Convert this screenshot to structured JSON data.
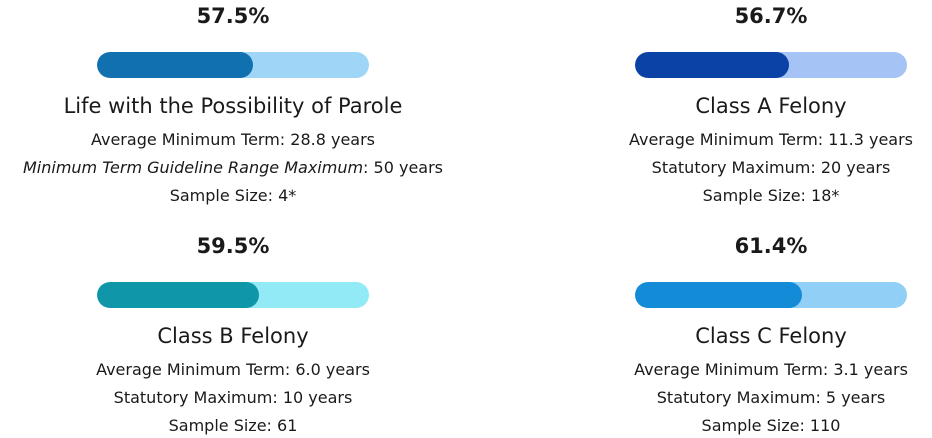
{
  "chart_data": [
    {
      "type": "progress",
      "title": "Life with the Possibility of Parole",
      "values": [
        57.5
      ],
      "value_labels": [
        "57.5%"
      ],
      "xlim": [
        0,
        100
      ],
      "color": "#1170b0",
      "track_color": "#9fd6f7",
      "lines": [
        [
          {
            "text": "Average Minimum Term: 28.8 years"
          }
        ],
        [
          {
            "text": "Minimum Term Guideline Range Maximum",
            "italic": true
          },
          {
            "text": ": 50 years"
          }
        ],
        [
          {
            "text": "Sample Size: 4*"
          }
        ]
      ]
    },
    {
      "type": "progress",
      "title": "Class A Felony",
      "values": [
        56.7
      ],
      "value_labels": [
        "56.7%"
      ],
      "xlim": [
        0,
        100
      ],
      "color": "#0a42a6",
      "track_color": "#a6c3f6",
      "lines": [
        [
          {
            "text": "Average Minimum Term: 11.3 years"
          }
        ],
        [
          {
            "text": "Statutory Maximum: 20 years"
          }
        ],
        [
          {
            "text": "Sample Size: 18*"
          }
        ]
      ]
    },
    {
      "type": "progress",
      "title": "Class B Felony",
      "values": [
        59.5
      ],
      "value_labels": [
        "59.5%"
      ],
      "xlim": [
        0,
        100
      ],
      "color": "#0f96a8",
      "track_color": "#92eaf6",
      "lines": [
        [
          {
            "text": "Average Minimum Term: 6.0 years"
          }
        ],
        [
          {
            "text": "Statutory Maximum: 10 years"
          }
        ],
        [
          {
            "text": "Sample Size: 61"
          }
        ]
      ]
    },
    {
      "type": "progress",
      "title": "Class C Felony",
      "values": [
        61.4
      ],
      "value_labels": [
        "61.4%"
      ],
      "xlim": [
        0,
        100
      ],
      "color": "#138bd6",
      "track_color": "#92cff6",
      "lines": [
        [
          {
            "text": "Average Minimum Term: 3.1 years"
          }
        ],
        [
          {
            "text": "Statutory Maximum: 5 years"
          }
        ],
        [
          {
            "text": "Sample Size: 110"
          }
        ]
      ]
    }
  ]
}
